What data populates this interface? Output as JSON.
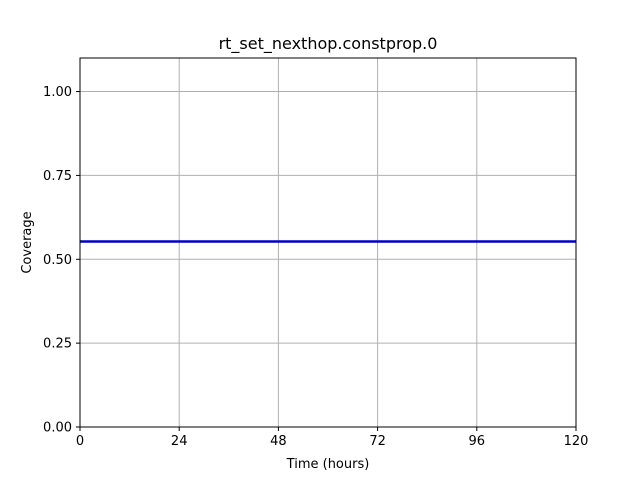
{
  "chart_data": {
    "type": "line",
    "title": "rt_set_nexthop.constprop.0",
    "xlabel": "Time (hours)",
    "ylabel": "Coverage",
    "xlim": [
      0,
      120
    ],
    "ylim": [
      0,
      1.1
    ],
    "x_ticks": [
      0,
      24,
      48,
      72,
      96,
      120
    ],
    "y_ticks": [
      0.0,
      0.25,
      0.5,
      0.75,
      1.0
    ],
    "x_tick_labels": [
      "0",
      "24",
      "48",
      "72",
      "96",
      "120"
    ],
    "y_tick_labels": [
      "0.00",
      "0.25",
      "0.50",
      "0.75",
      "1.00"
    ],
    "grid": true,
    "series": [
      {
        "color": "#0000cc",
        "x": [
          0,
          120
        ],
        "y": [
          0.553,
          0.553
        ]
      }
    ]
  }
}
